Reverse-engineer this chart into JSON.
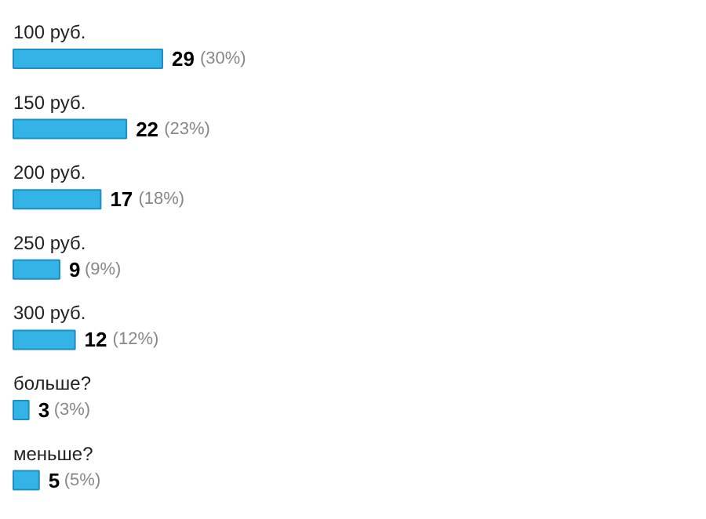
{
  "chart_data": {
    "type": "bar",
    "orientation": "horizontal",
    "color": "#33b3e6",
    "categories": [
      "100 руб.",
      "150 руб.",
      "200 руб.",
      "250 руб.",
      "300 руб.",
      "больше?",
      "меньше?"
    ],
    "values": [
      29,
      22,
      17,
      9,
      12,
      3,
      5
    ],
    "value_labels": [
      "29 (30%)",
      "22 (23%)",
      "17 (18%)",
      "9 (9%)",
      "12 (12%)",
      "3 (3%)",
      "5 (5%)"
    ]
  }
}
